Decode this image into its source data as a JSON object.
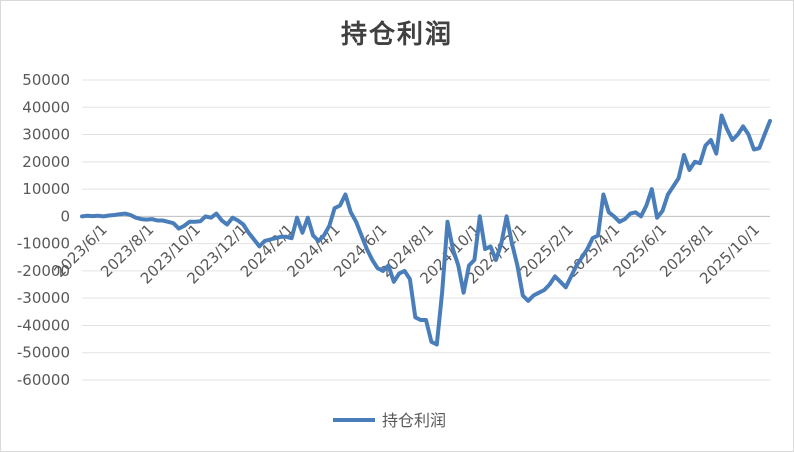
{
  "chart_data": {
    "type": "line",
    "title": "持仓利润",
    "xlabel": "",
    "ylabel": "",
    "ylim": [
      -60000,
      50000
    ],
    "y_ticks": [
      50000,
      40000,
      30000,
      20000,
      10000,
      0,
      -10000,
      -20000,
      -30000,
      -40000,
      -50000,
      -60000
    ],
    "x_tick_labels": [
      "2023/6/1",
      "2023/8/1",
      "2023/10/1",
      "2023/12/1",
      "2024/2/1",
      "2024/4/1",
      "2024/6/1",
      "2024/8/1",
      "2024/10/1",
      "2024/12/1",
      "2025/2/1",
      "2025/4/1",
      "2025/6/1",
      "2025/8/1",
      "2025/10/1"
    ],
    "grid": true,
    "legend_position": "bottom",
    "series": [
      {
        "name": "持仓利润",
        "color": "#4a7ebb",
        "values": [
          0,
          200,
          100,
          200,
          0,
          300,
          500,
          800,
          1000,
          500,
          -500,
          -1000,
          -1200,
          -1000,
          -1500,
          -1500,
          -2000,
          -2500,
          -4500,
          -3500,
          -2000,
          -2000,
          -1800,
          0,
          -500,
          1000,
          -1500,
          -3000,
          -500,
          -1500,
          -3000,
          -6000,
          -8500,
          -11000,
          -9000,
          -8500,
          -8000,
          -7500,
          -7500,
          -8000,
          -500,
          -6000,
          -500,
          -7000,
          -9000,
          -7000,
          -3500,
          3000,
          4000,
          8000,
          1500,
          -2000,
          -7000,
          -12000,
          -16000,
          -19000,
          -20000,
          -18000,
          -24000,
          -21000,
          -20000,
          -23000,
          -37000,
          -38000,
          -38000,
          -46000,
          -47000,
          -28000,
          -2000,
          -12000,
          -18000,
          -28000,
          -18000,
          -16000,
          0,
          -12000,
          -11000,
          -16000,
          -10000,
          0,
          -10000,
          -18000,
          -29000,
          -31000,
          -29000,
          -28000,
          -27000,
          -25000,
          -22000,
          -24000,
          -26000,
          -22000,
          -18000,
          -15000,
          -12000,
          -8000,
          -7000,
          8000,
          1500,
          0,
          -2000,
          -1000,
          1000,
          1500,
          0,
          4000,
          10000,
          -500,
          2000,
          8000,
          11000,
          14000,
          22500,
          17000,
          20000,
          19500,
          26000,
          28000,
          23000,
          37000,
          32000,
          28000,
          30000,
          33000,
          30000,
          24500,
          25000,
          30000,
          35000
        ]
      }
    ]
  }
}
